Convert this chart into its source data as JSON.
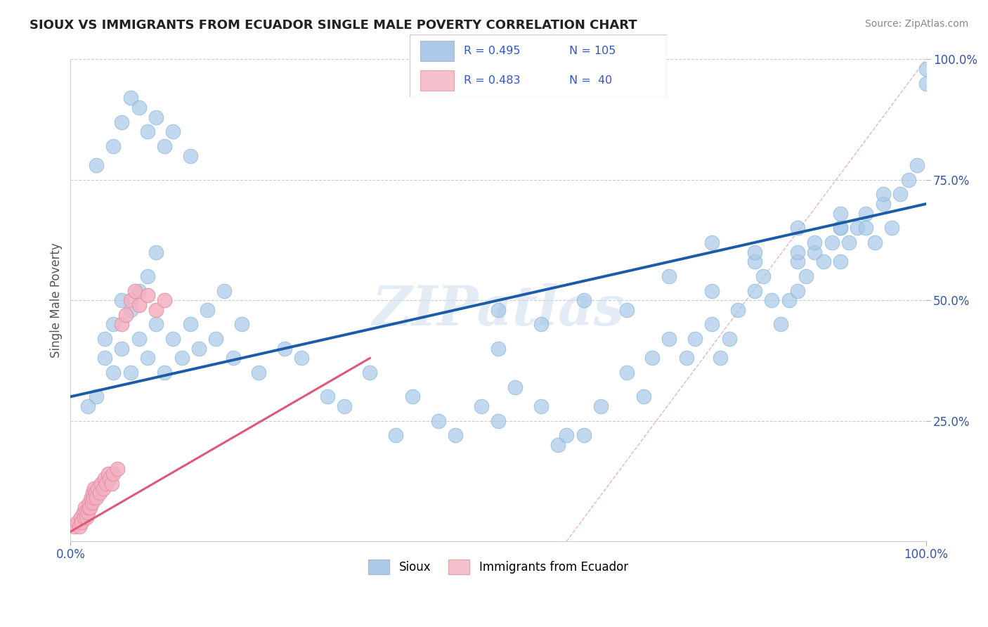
{
  "title": "SIOUX VS IMMIGRANTS FROM ECUADOR SINGLE MALE POVERTY CORRELATION CHART",
  "source": "Source: ZipAtlas.com",
  "ylabel": "Single Male Poverty",
  "xlim": [
    0,
    1
  ],
  "ylim": [
    0,
    1
  ],
  "ytick_positions": [
    0.25,
    0.5,
    0.75,
    1.0
  ],
  "ytick_labels": [
    "25.0%",
    "50.0%",
    "75.0%",
    "100.0%"
  ],
  "blue_color": "#a8c8e8",
  "pink_color": "#f4b0c0",
  "blue_line_color": "#1a5ca8",
  "pink_line_color": "#e05878",
  "blue_fill": "#adc8e8",
  "pink_fill": "#f5c0cc",
  "watermark": "ZIPatlas",
  "sioux_x": [
    0.02,
    0.03,
    0.04,
    0.04,
    0.05,
    0.05,
    0.06,
    0.06,
    0.07,
    0.07,
    0.08,
    0.08,
    0.09,
    0.09,
    0.1,
    0.1,
    0.11,
    0.12,
    0.13,
    0.14,
    0.15,
    0.16,
    0.17,
    0.18,
    0.19,
    0.2,
    0.22,
    0.25,
    0.27,
    0.3,
    0.32,
    0.35,
    0.38,
    0.4,
    0.43,
    0.45,
    0.48,
    0.5,
    0.52,
    0.55,
    0.57,
    0.58,
    0.6,
    0.62,
    0.65,
    0.67,
    0.68,
    0.7,
    0.72,
    0.73,
    0.75,
    0.76,
    0.77,
    0.78,
    0.8,
    0.81,
    0.82,
    0.83,
    0.84,
    0.85,
    0.85,
    0.86,
    0.87,
    0.88,
    0.89,
    0.9,
    0.9,
    0.91,
    0.92,
    0.93,
    0.94,
    0.95,
    0.96,
    0.97,
    0.98,
    0.99,
    1.0,
    1.0,
    0.03,
    0.05,
    0.06,
    0.07,
    0.08,
    0.09,
    0.1,
    0.11,
    0.12,
    0.14,
    0.5,
    0.5,
    0.55,
    0.6,
    0.65,
    0.7,
    0.75,
    0.8,
    0.85,
    0.9,
    0.95,
    0.75,
    0.8,
    0.85,
    0.87,
    0.9,
    0.93
  ],
  "sioux_y": [
    0.28,
    0.3,
    0.38,
    0.42,
    0.35,
    0.45,
    0.4,
    0.5,
    0.35,
    0.48,
    0.42,
    0.52,
    0.38,
    0.55,
    0.45,
    0.6,
    0.35,
    0.42,
    0.38,
    0.45,
    0.4,
    0.48,
    0.42,
    0.52,
    0.38,
    0.45,
    0.35,
    0.4,
    0.38,
    0.3,
    0.28,
    0.35,
    0.22,
    0.3,
    0.25,
    0.22,
    0.28,
    0.25,
    0.32,
    0.28,
    0.2,
    0.22,
    0.22,
    0.28,
    0.35,
    0.3,
    0.38,
    0.42,
    0.38,
    0.42,
    0.45,
    0.38,
    0.42,
    0.48,
    0.52,
    0.55,
    0.5,
    0.45,
    0.5,
    0.52,
    0.58,
    0.55,
    0.6,
    0.58,
    0.62,
    0.65,
    0.58,
    0.62,
    0.65,
    0.68,
    0.62,
    0.7,
    0.65,
    0.72,
    0.75,
    0.78,
    0.95,
    0.98,
    0.78,
    0.82,
    0.87,
    0.92,
    0.9,
    0.85,
    0.88,
    0.82,
    0.85,
    0.8,
    0.48,
    0.4,
    0.45,
    0.5,
    0.48,
    0.55,
    0.52,
    0.58,
    0.6,
    0.65,
    0.72,
    0.62,
    0.6,
    0.65,
    0.62,
    0.68,
    0.65
  ],
  "ecuador_x": [
    0.005,
    0.008,
    0.01,
    0.012,
    0.013,
    0.015,
    0.016,
    0.017,
    0.018,
    0.019,
    0.02,
    0.021,
    0.022,
    0.023,
    0.024,
    0.025,
    0.026,
    0.027,
    0.028,
    0.029,
    0.03,
    0.032,
    0.034,
    0.036,
    0.038,
    0.04,
    0.042,
    0.044,
    0.046,
    0.048,
    0.05,
    0.055,
    0.06,
    0.065,
    0.07,
    0.075,
    0.08,
    0.09,
    0.1,
    0.11
  ],
  "ecuador_y": [
    0.03,
    0.04,
    0.03,
    0.05,
    0.04,
    0.06,
    0.05,
    0.07,
    0.06,
    0.05,
    0.06,
    0.07,
    0.08,
    0.07,
    0.09,
    0.08,
    0.1,
    0.09,
    0.11,
    0.1,
    0.09,
    0.11,
    0.1,
    0.12,
    0.11,
    0.13,
    0.12,
    0.14,
    0.13,
    0.12,
    0.14,
    0.15,
    0.45,
    0.47,
    0.5,
    0.52,
    0.49,
    0.51,
    0.48,
    0.5
  ],
  "blue_line_x0": 0.0,
  "blue_line_y0": 0.3,
  "blue_line_x1": 1.0,
  "blue_line_y1": 0.7,
  "pink_line_x0": 0.0,
  "pink_line_y0": 0.02,
  "pink_line_x1": 0.35,
  "pink_line_y1": 0.38,
  "ref_line_x0": 0.58,
  "ref_line_y0": 0.0,
  "ref_line_x1": 1.0,
  "ref_line_y1": 1.0
}
